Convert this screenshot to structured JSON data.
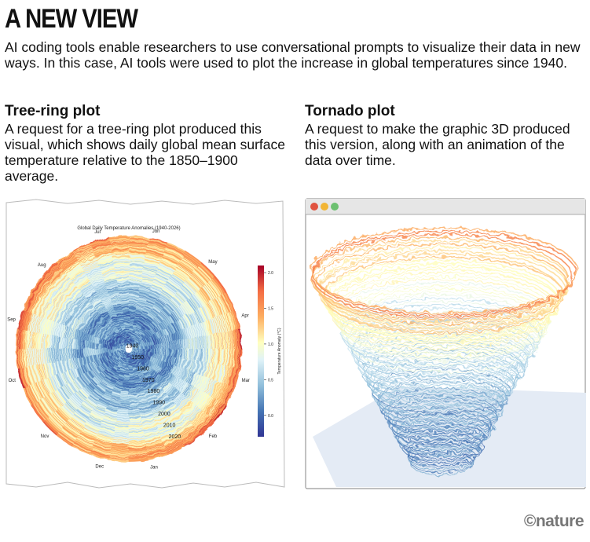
{
  "header": {
    "title": "A NEW VIEW",
    "intro": "AI coding tools enable researchers to use conversational prompts to visualize their data in new ways. In this case, AI tools were used to plot the increase in global temperatures since 1940."
  },
  "left_section": {
    "heading": "Tree-ring plot",
    "body": "A request for a tree-ring plot produced this visual, which shows daily global mean surface temperature relative to the 1850–1900 average."
  },
  "right_section": {
    "heading": "Tornado plot",
    "body": "A request to make the graphic 3D produced this version, along with an animation of the data over time."
  },
  "window_controls": {
    "close_color": "#e0523f",
    "minimize_color": "#f2b535",
    "zoom_color": "#6cc070"
  },
  "footer": {
    "logo": "©nature"
  },
  "chart_data": [
    {
      "type": "radial",
      "title": "Global Daily Temperature Anomalies (1940-2026)",
      "months": [
        "Jan",
        "Feb",
        "Mar",
        "Apr",
        "May",
        "Jun",
        "Jul",
        "Aug",
        "Sep",
        "Oct",
        "Nov",
        "Dec"
      ],
      "year_labels": [
        "1940",
        "1950",
        "1960",
        "1970",
        "1980",
        "1990",
        "2000",
        "2010",
        "2020"
      ],
      "years_range": [
        1940,
        2026
      ],
      "colorbar": {
        "label": "Temperature Anomaly (°C)",
        "ticks": [
          "0.0",
          "0.5",
          "1.0",
          "1.5",
          "2.0"
        ],
        "range": [
          -0.3,
          2.1
        ],
        "colormap": "RdYlBu_r"
      },
      "ring_mean_anomaly": [
        {
          "year": 1940,
          "value": 0.2
        },
        {
          "year": 1950,
          "value": 0.15
        },
        {
          "year": 1960,
          "value": 0.25
        },
        {
          "year": 1970,
          "value": 0.3
        },
        {
          "year": 1980,
          "value": 0.5
        },
        {
          "year": 1990,
          "value": 0.65
        },
        {
          "year": 2000,
          "value": 0.8
        },
        {
          "year": 2010,
          "value": 1.0
        },
        {
          "year": 2020,
          "value": 1.3
        },
        {
          "year": 2026,
          "value": 1.6
        }
      ]
    },
    {
      "type": "3d-line",
      "description_source": "Tornado plot",
      "years_range": [
        1940,
        2026
      ],
      "colormap": "RdYlBu_r"
    }
  ]
}
